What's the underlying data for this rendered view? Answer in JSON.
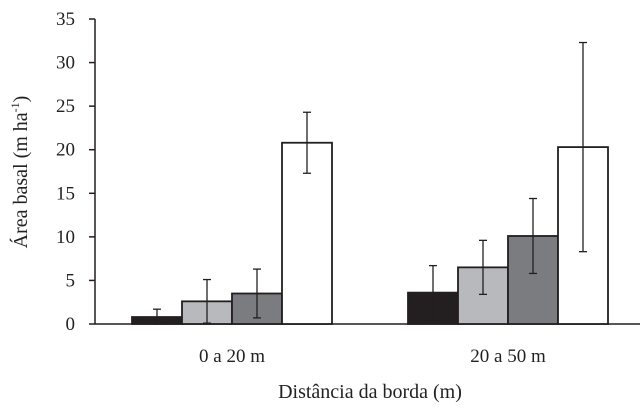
{
  "chart_data": {
    "type": "bar",
    "title": "",
    "xlabel": "Distância da borda (m)",
    "ylabel": {
      "prefix": "Área basal (m",
      "middle": " ha",
      "superscript": "-1",
      "suffix": ")"
    },
    "ylim": [
      0,
      35
    ],
    "yticks": [
      "0",
      "5",
      "10",
      "15",
      "20",
      "25",
      "30",
      "35"
    ],
    "categories": [
      "0 a 20 m",
      "20 a 50 m"
    ],
    "series": [
      {
        "color": "#231f20",
        "values": [
          0.8,
          3.6
        ],
        "errors": [
          0.9,
          3.1
        ]
      },
      {
        "color": "#b7b9bc",
        "values": [
          2.6,
          6.5
        ],
        "errors": [
          2.5,
          3.1
        ]
      },
      {
        "color": "#7a7c7f",
        "values": [
          3.5,
          10.1
        ],
        "errors": [
          2.8,
          4.3
        ]
      },
      {
        "color": "#ffffff",
        "values": [
          20.8,
          20.3
        ],
        "errors": [
          3.5,
          12.0
        ]
      }
    ],
    "grid": false,
    "legend": "none"
  }
}
